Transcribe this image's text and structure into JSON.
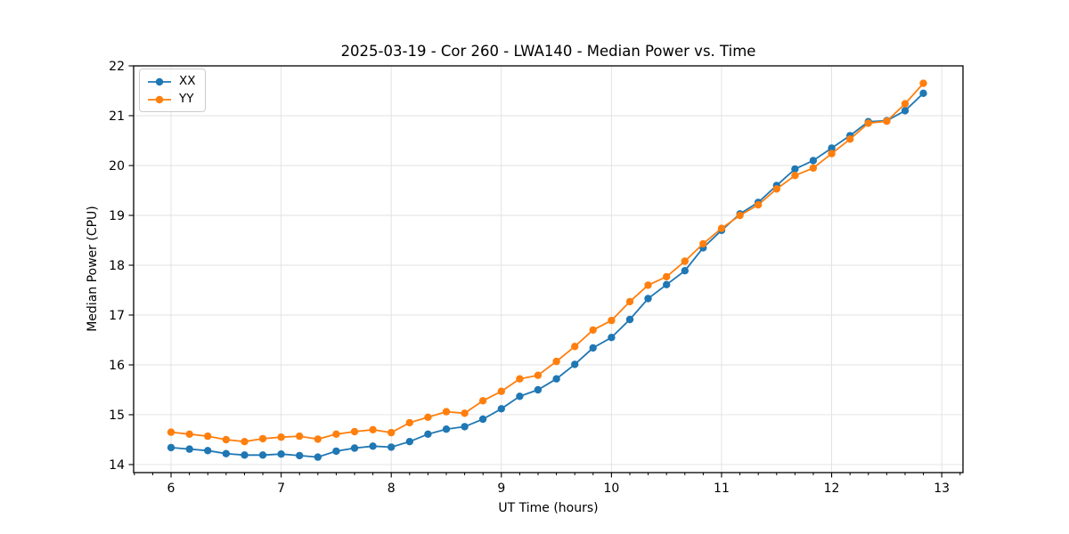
{
  "chart_data": {
    "type": "line",
    "title": "2025-03-19 - Cor 260 - LWA140 - Median Power vs. Time",
    "xlabel": "UT Time (hours)",
    "ylabel": "Median Power (CPU)",
    "xlim": [
      5.66,
      13.193
    ],
    "ylim": [
      13.839,
      22.0
    ],
    "x_ticks": [
      6,
      7,
      8,
      9,
      10,
      11,
      12,
      13
    ],
    "y_ticks": [
      14,
      15,
      16,
      17,
      18,
      19,
      20,
      21,
      22
    ],
    "x_minor_step": 0.16667,
    "grid": true,
    "legend_position": "upper left",
    "x": [
      6.0,
      6.167,
      6.333,
      6.5,
      6.667,
      6.833,
      7.0,
      7.167,
      7.333,
      7.5,
      7.667,
      7.833,
      8.0,
      8.167,
      8.333,
      8.5,
      8.667,
      8.833,
      9.0,
      9.167,
      9.333,
      9.5,
      9.667,
      9.833,
      10.0,
      10.167,
      10.333,
      10.5,
      10.667,
      10.833,
      11.0,
      11.167,
      11.333,
      11.5,
      11.667,
      11.833,
      12.0,
      12.167,
      12.333,
      12.5,
      12.667,
      12.833
    ],
    "series": [
      {
        "name": "XX",
        "color": "#1f77b4",
        "values": [
          14.34,
          14.31,
          14.28,
          14.22,
          14.19,
          14.19,
          14.21,
          14.18,
          14.15,
          14.27,
          14.33,
          14.37,
          14.35,
          14.46,
          14.61,
          14.71,
          14.76,
          14.91,
          15.12,
          15.37,
          15.5,
          15.72,
          16.01,
          16.34,
          16.55,
          16.91,
          17.33,
          17.61,
          17.89,
          18.35,
          18.7,
          19.03,
          19.26,
          19.6,
          19.93,
          20.1,
          20.35,
          20.6,
          20.88,
          20.9,
          21.1,
          21.45
        ]
      },
      {
        "name": "YY",
        "color": "#ff7f0e",
        "values": [
          14.65,
          14.61,
          14.57,
          14.5,
          14.46,
          14.52,
          14.55,
          14.57,
          14.51,
          14.61,
          14.66,
          14.7,
          14.64,
          14.84,
          14.95,
          15.06,
          15.03,
          15.28,
          15.47,
          15.72,
          15.79,
          16.07,
          16.37,
          16.7,
          16.89,
          17.27,
          17.6,
          17.77,
          18.08,
          18.43,
          18.74,
          19.0,
          19.21,
          19.53,
          19.8,
          19.95,
          20.24,
          20.53,
          20.85,
          20.89,
          21.24,
          21.65
        ]
      }
    ],
    "style": {
      "grid_color": "#e0e0e0",
      "spine_color": "#000000",
      "tick_color": "#000000",
      "background": "#ffffff"
    }
  }
}
